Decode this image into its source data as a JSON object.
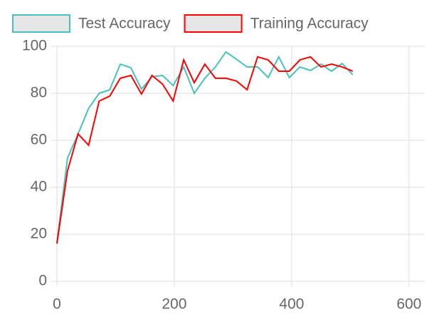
{
  "chart_data": {
    "type": "line",
    "x": [
      0,
      18,
      36,
      54,
      72,
      90,
      108,
      126,
      144,
      162,
      180,
      198,
      216,
      234,
      252,
      270,
      288,
      306,
      324,
      342,
      360,
      378,
      396,
      414,
      432,
      450,
      468,
      486,
      504
    ],
    "series": [
      {
        "name": "Test Accuracy",
        "color": "#4bc0c0",
        "values": [
          16.7,
          52.4,
          62.7,
          73.6,
          80,
          81.5,
          92.4,
          90.9,
          81.8,
          87,
          87.6,
          83.3,
          91.2,
          80,
          86.4,
          91.2,
          97.6,
          94.5,
          91.2,
          91.2,
          86.7,
          95.5,
          86.7,
          91.2,
          89.7,
          92.4,
          89.4,
          92.7,
          87.9
        ]
      },
      {
        "name": "Training Accuracy",
        "color": "#ff0000",
        "values": [
          16,
          47,
          62.7,
          57.9,
          76.7,
          78.8,
          86.4,
          87.6,
          79.7,
          87.6,
          83.9,
          76.7,
          94.2,
          84.5,
          92.4,
          86.4,
          86.4,
          85.2,
          81.5,
          95.5,
          94.2,
          89.4,
          89.4,
          94.2,
          95.5,
          91.2,
          92.4,
          91.2,
          89.4
        ]
      }
    ],
    "xlim": [
      0,
      627
    ],
    "xticks": [
      0,
      200,
      400,
      600
    ],
    "ylim": [
      0,
      100
    ],
    "yticks": [
      0,
      20,
      40,
      60,
      80,
      100
    ],
    "grid": true,
    "legend": "top"
  }
}
